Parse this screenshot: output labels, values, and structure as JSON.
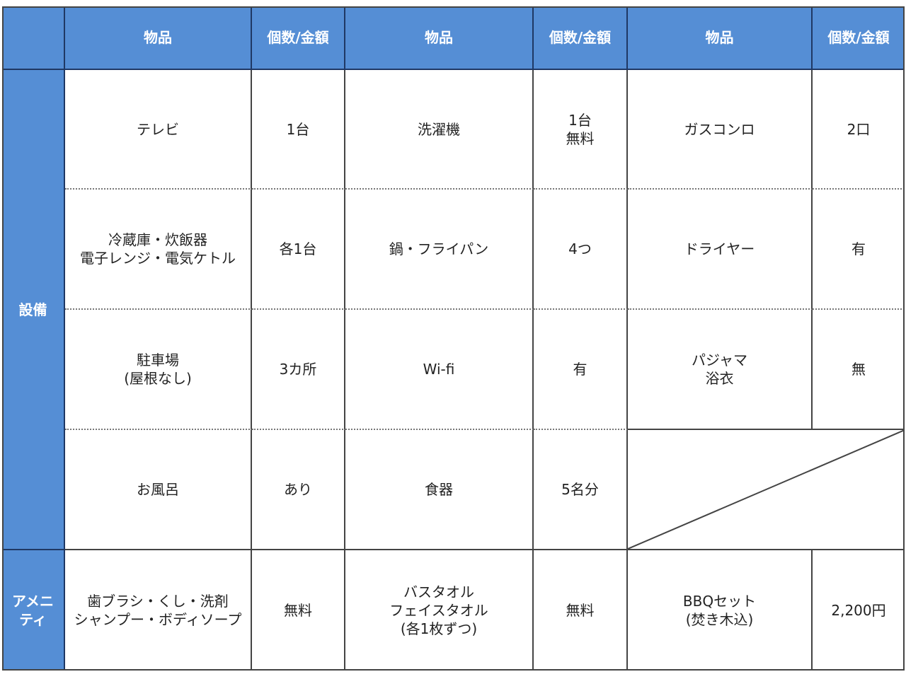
{
  "header": [
    "",
    "物品",
    "個数/金額",
    "物品",
    "個数/金額",
    "物品",
    "個数/金額"
  ],
  "categories": {
    "equipment": "設備",
    "amenity": "アメニ\nティ"
  },
  "rows": [
    [
      "テレビ",
      "1台",
      "洗濯機",
      "1台\n無料",
      "ガスコンロ",
      "2口"
    ],
    [
      "冷蔵庫・炊飯器\n電子レンジ・電気ケトル",
      "各1台",
      "鍋・フライパン",
      "4つ",
      "ドライヤー",
      "有"
    ],
    [
      "駐車場\n(屋根なし)",
      "3カ所",
      "Wi-fi",
      "有",
      "パジャマ\n浴衣",
      "無"
    ],
    [
      "お風呂",
      "あり",
      "食器",
      "5名分",
      "",
      ""
    ],
    [
      "歯ブラシ・くし・洗剤\nシャンプー・ボディソープ",
      "無料",
      "バスタオル\nフェイスタオル\n(各1枚ずつ)",
      "無料",
      "BBQセット\n(焚き木込)",
      "2,200円"
    ]
  ],
  "colors": {
    "header": "#558ed5",
    "border": "#444444"
  }
}
